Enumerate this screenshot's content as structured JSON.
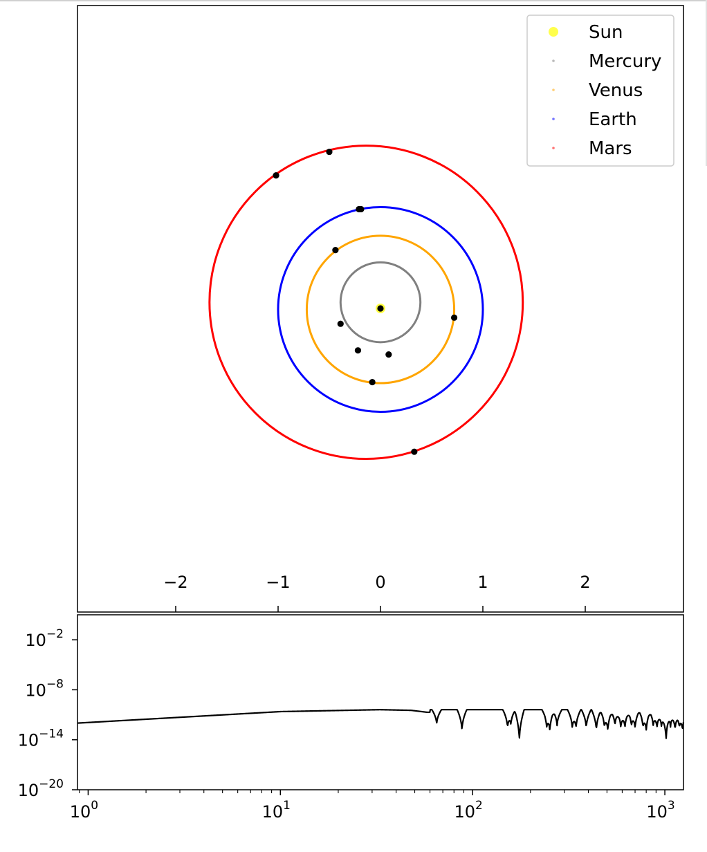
{
  "chart_data": [
    {
      "type": "scatter",
      "title": "",
      "xlabel": "",
      "ylabel": "",
      "xlim": [
        -3,
        3
      ],
      "ylim": [
        -3,
        3
      ],
      "aspect": "equal",
      "x_ticks": [
        -2,
        -1,
        0,
        1,
        2
      ],
      "x_tick_labels": [
        "−2",
        "−1",
        "0",
        "1",
        "2"
      ],
      "x_axis_position": "inside-bottom",
      "y_ticks": [],
      "grid": false,
      "legend": {
        "position": "top-right",
        "entries": [
          {
            "label": "Sun",
            "color": "#ffff00"
          },
          {
            "label": "Mercury",
            "color": "#808080"
          },
          {
            "label": "Venus",
            "color": "#ffa500"
          },
          {
            "label": "Earth",
            "color": "#0000ff"
          },
          {
            "label": "Mars",
            "color": "#ff0000"
          }
        ]
      },
      "sun": {
        "x": 0.0,
        "y": 0.0,
        "color": "#ffff00"
      },
      "orbits": [
        {
          "name": "Mercury",
          "color": "#808080",
          "cx": 0.0,
          "cy": 0.06,
          "rx": 0.39,
          "ry": 0.39
        },
        {
          "name": "Venus",
          "color": "#ffa500",
          "cx": 0.0,
          "cy": -0.01,
          "rx": 0.72,
          "ry": 0.72
        },
        {
          "name": "Earth",
          "color": "#0000ff",
          "cx": 0.0,
          "cy": -0.01,
          "rx": 1.0,
          "ry": 1.0
        },
        {
          "name": "Mars",
          "color": "#ff0000",
          "cx": -0.14,
          "cy": 0.06,
          "rx": 1.53,
          "ry": 1.53
        }
      ],
      "planet_positions": {
        "color": "#000000",
        "points": [
          {
            "x": 0.0,
            "y": 0.0
          },
          {
            "x": -0.39,
            "y": -0.15
          },
          {
            "x": -0.22,
            "y": -0.41
          },
          {
            "x": 0.08,
            "y": -0.45
          },
          {
            "x": -0.44,
            "y": 0.57
          },
          {
            "x": 0.72,
            "y": -0.09
          },
          {
            "x": -0.08,
            "y": -0.72
          },
          {
            "x": -0.21,
            "y": 0.97
          },
          {
            "x": -0.19,
            "y": 0.97
          },
          {
            "x": -1.02,
            "y": 1.3
          },
          {
            "x": -0.5,
            "y": 1.53
          },
          {
            "x": 0.33,
            "y": -1.4
          }
        ]
      }
    },
    {
      "type": "line",
      "title": "",
      "xlabel": "",
      "ylabel": "",
      "x_scale": "log",
      "y_scale": "log",
      "xlim": [
        0.88,
        1250
      ],
      "ylim": [
        1e-20,
        10.0
      ],
      "x_tick_labels": [
        {
          "base": "10",
          "exp": "0",
          "value": 1
        },
        {
          "base": "10",
          "exp": "1",
          "value": 10
        },
        {
          "base": "10",
          "exp": "2",
          "value": 100
        },
        {
          "base": "10",
          "exp": "3",
          "value": 1000
        }
      ],
      "y_tick_labels": [
        {
          "base": "10",
          "exp": "−2",
          "value": 0.01
        },
        {
          "base": "10",
          "exp": "−8",
          "value": 1e-08
        },
        {
          "base": "10",
          "exp": "−14",
          "value": 1e-14
        },
        {
          "base": "10",
          "exp": "−20",
          "value": 1e-20
        }
      ],
      "grid": false,
      "line_color": "#000000",
      "baseline": {
        "points": [
          [
            0.88,
            1e-12
          ],
          [
            10,
            2.4e-11
          ],
          [
            33,
            4.1e-11
          ],
          [
            48,
            3.4e-11
          ],
          [
            58,
            2e-11
          ]
        ],
        "pattern_start": 60,
        "pattern_end": 1250,
        "top_value": 4.1e-11,
        "floor_value": 1.5e-12,
        "dip_width_decades": 0.025
      },
      "dips": [
        [
          65,
          6e-13
        ],
        [
          88,
          1e-13
        ],
        [
          152,
          2e-13
        ],
        [
          158,
          6e-13
        ],
        [
          175,
          5e-15
        ],
        [
          243,
          3e-13
        ],
        [
          252,
          1e-13
        ],
        [
          275,
          4e-13
        ],
        [
          330,
          2e-13
        ],
        [
          345,
          2e-13
        ],
        [
          390,
          2e-13
        ],
        [
          440,
          1e-13
        ],
        [
          485,
          3e-13
        ],
        [
          505,
          1e-13
        ],
        [
          550,
          4e-13
        ],
        [
          590,
          2e-13
        ],
        [
          620,
          2e-13
        ],
        [
          670,
          4e-13
        ],
        [
          700,
          2e-13
        ],
        [
          770,
          3e-13
        ],
        [
          800,
          1e-13
        ],
        [
          870,
          4e-13
        ],
        [
          910,
          2e-13
        ],
        [
          960,
          3e-13
        ],
        [
          1015,
          5e-15
        ],
        [
          1070,
          3e-13
        ],
        [
          1130,
          1e-13
        ],
        [
          1190,
          3e-13
        ],
        [
          1235,
          1e-13
        ]
      ]
    }
  ]
}
